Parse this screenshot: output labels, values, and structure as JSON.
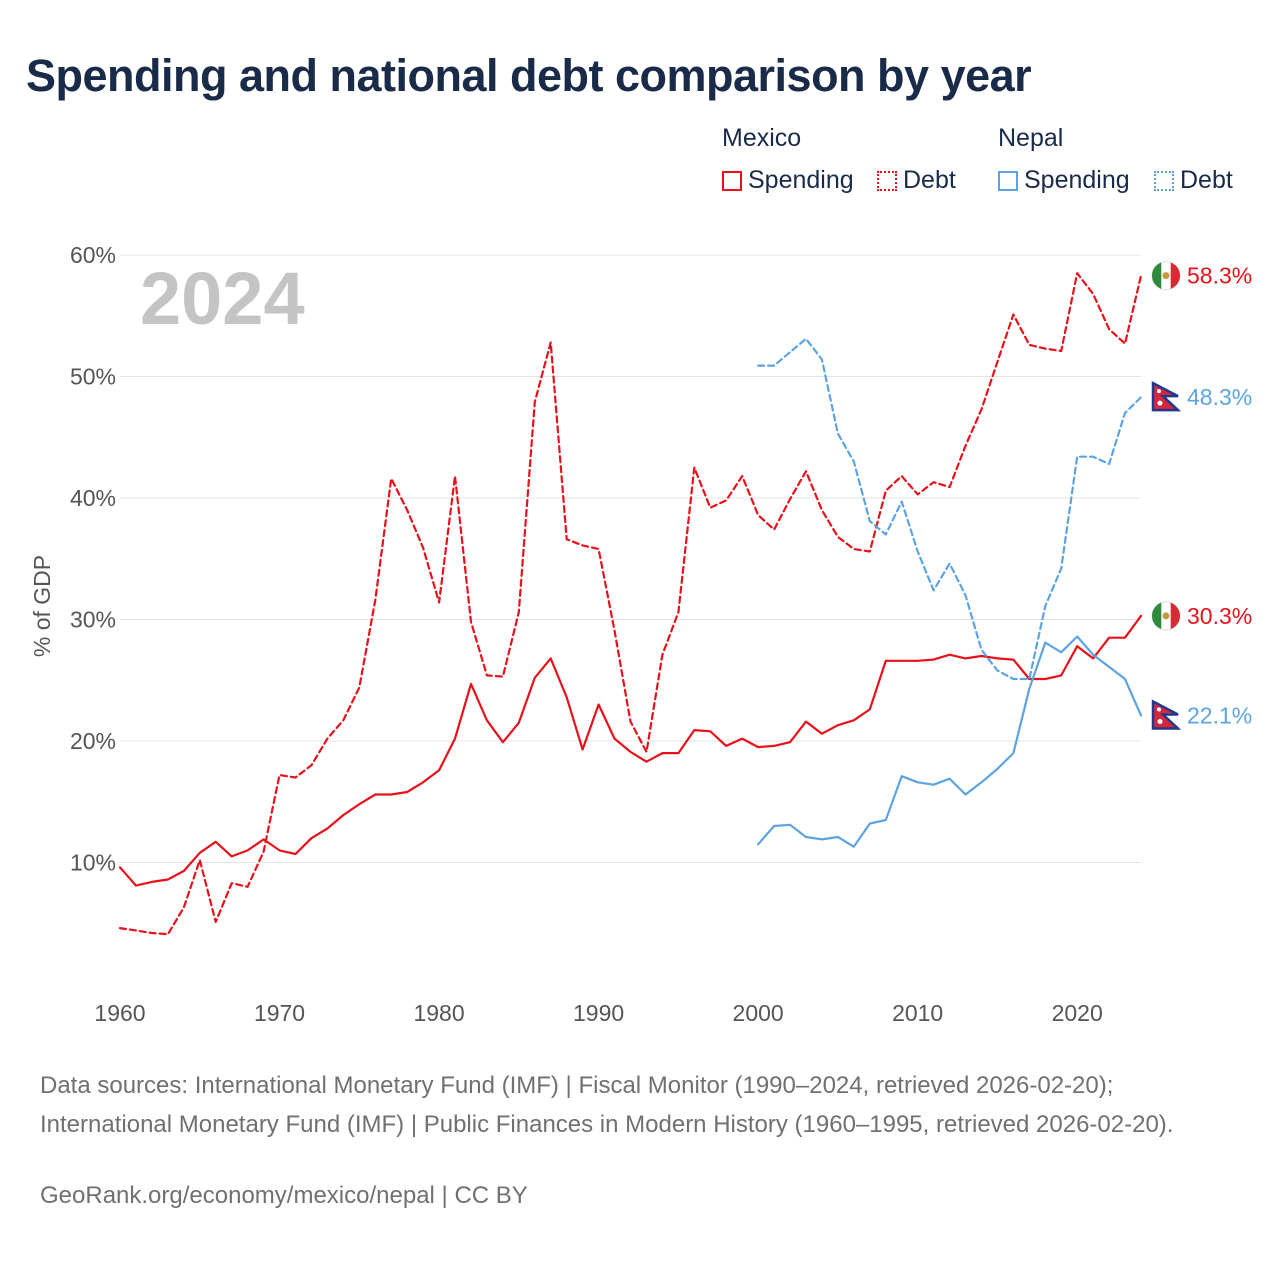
{
  "title": "Spending and national debt comparison by year",
  "legend": {
    "groups": [
      {
        "name": "Mexico",
        "color": "#e8111b",
        "spending_label": "Spending",
        "debt_label": "Debt"
      },
      {
        "name": "Nepal",
        "color": "#5da3e0",
        "spending_label": "Spending",
        "debt_label": "Debt"
      }
    ]
  },
  "watermark_year": "2024",
  "sources_text": "Data sources: International Monetary Fund (IMF) | Fiscal Monitor (1990–2024, retrieved 2026-02-20); International Monetary Fund (IMF) | Public Finances in Modern History (1960–1995, retrieved 2026-02-20).",
  "credit_text": "GeoRank.org/economy/mexico/nepal | CC BY",
  "chart_data": {
    "type": "line",
    "title": "Spending and national debt comparison by year",
    "ylabel": "% of GDP",
    "xlabel": "",
    "xlim": [
      1960,
      2024
    ],
    "ylim": [
      0,
      60
    ],
    "yticks": [
      10,
      20,
      30,
      40,
      50,
      60
    ],
    "ytick_labels": [
      "10%",
      "20%",
      "30%",
      "40%",
      "50%",
      "60%"
    ],
    "xticks": [
      1960,
      1970,
      1980,
      1990,
      2000,
      2010,
      2020
    ],
    "xtick_labels": [
      "1960",
      "1970",
      "1980",
      "1990",
      "2000",
      "2010",
      "2020"
    ],
    "grid": true,
    "legend_position": "top-right",
    "series": [
      {
        "name": "Mexico Spending",
        "country": "Mexico",
        "metric": "Spending",
        "color": "#e8111b",
        "dashed": false,
        "end_label": "30.3%",
        "x": [
          1960,
          1961,
          1962,
          1963,
          1964,
          1965,
          1966,
          1967,
          1968,
          1969,
          1970,
          1971,
          1972,
          1973,
          1974,
          1975,
          1976,
          1977,
          1978,
          1979,
          1980,
          1981,
          1982,
          1983,
          1984,
          1985,
          1986,
          1987,
          1988,
          1989,
          1990,
          1991,
          1992,
          1993,
          1994,
          1995,
          1996,
          1997,
          1998,
          1999,
          2000,
          2001,
          2002,
          2003,
          2004,
          2005,
          2006,
          2007,
          2008,
          2009,
          2010,
          2011,
          2012,
          2013,
          2014,
          2015,
          2016,
          2017,
          2018,
          2019,
          2020,
          2021,
          2022,
          2023,
          2024
        ],
        "values": [
          9.6,
          8.1,
          8.4,
          8.6,
          9.3,
          10.8,
          11.7,
          10.5,
          11.0,
          11.9,
          11.0,
          10.7,
          12.0,
          12.8,
          13.9,
          14.8,
          15.6,
          15.6,
          15.8,
          16.6,
          17.6,
          20.2,
          24.7,
          21.7,
          19.9,
          21.5,
          25.2,
          26.8,
          23.6,
          19.3,
          23.0,
          20.2,
          19.1,
          18.3,
          19.0,
          19.0,
          20.9,
          20.8,
          19.6,
          20.2,
          19.5,
          19.6,
          19.9,
          21.6,
          20.6,
          21.3,
          21.7,
          22.6,
          26.6,
          26.6,
          26.6,
          26.7,
          27.1,
          26.8,
          27.0,
          26.8,
          26.7,
          25.1,
          25.1,
          25.4,
          27.8,
          26.8,
          28.5,
          28.5,
          30.3
        ]
      },
      {
        "name": "Mexico Debt",
        "country": "Mexico",
        "metric": "Debt",
        "color": "#e8111b",
        "dashed": true,
        "end_label": "58.3%",
        "x": [
          1960,
          1961,
          1962,
          1963,
          1964,
          1965,
          1966,
          1967,
          1968,
          1969,
          1970,
          1971,
          1972,
          1973,
          1974,
          1975,
          1976,
          1977,
          1978,
          1979,
          1980,
          1981,
          1982,
          1983,
          1984,
          1985,
          1986,
          1987,
          1988,
          1989,
          1990,
          1991,
          1992,
          1993,
          1994,
          1995,
          1996,
          1997,
          1998,
          1999,
          2000,
          2001,
          2002,
          2003,
          2004,
          2005,
          2006,
          2007,
          2008,
          2009,
          2010,
          2011,
          2012,
          2013,
          2014,
          2015,
          2016,
          2017,
          2018,
          2019,
          2020,
          2021,
          2022,
          2023,
          2024
        ],
        "values": [
          4.6,
          4.4,
          4.2,
          4.1,
          6.3,
          10.2,
          5.1,
          8.3,
          8.0,
          10.9,
          17.2,
          17.0,
          18.0,
          20.2,
          21.7,
          24.4,
          31.6,
          41.6,
          39.0,
          35.9,
          31.4,
          41.8,
          29.8,
          25.4,
          25.3,
          30.6,
          47.9,
          52.8,
          36.6,
          36.1,
          35.8,
          29.1,
          21.6,
          19.1,
          27.1,
          30.6,
          42.5,
          39.2,
          39.8,
          41.8,
          38.6,
          37.4,
          39.9,
          42.2,
          39.0,
          36.8,
          35.8,
          35.6,
          40.6,
          41.8,
          40.3,
          41.3,
          40.9,
          44.3,
          47.3,
          51.2,
          55.1,
          52.6,
          52.3,
          52.1,
          58.5,
          56.8,
          53.9,
          52.7,
          58.3
        ]
      },
      {
        "name": "Nepal Spending",
        "country": "Nepal",
        "metric": "Spending",
        "color": "#5da3e0",
        "dashed": false,
        "end_label": "22.1%",
        "x": [
          2000,
          2001,
          2002,
          2003,
          2004,
          2005,
          2006,
          2007,
          2008,
          2009,
          2010,
          2011,
          2012,
          2013,
          2014,
          2015,
          2016,
          2017,
          2018,
          2019,
          2020,
          2021,
          2022,
          2023,
          2024
        ],
        "values": [
          11.5,
          13.0,
          13.1,
          12.1,
          11.9,
          12.1,
          11.3,
          13.2,
          13.5,
          17.1,
          16.6,
          16.4,
          16.9,
          15.6,
          16.6,
          17.7,
          19.0,
          24.3,
          28.1,
          27.3,
          28.6,
          27.1,
          26.1,
          25.1,
          22.1
        ]
      },
      {
        "name": "Nepal Debt",
        "country": "Nepal",
        "metric": "Debt",
        "color": "#5da3e0",
        "dashed": true,
        "end_label": "48.3%",
        "x": [
          2000,
          2001,
          2002,
          2003,
          2004,
          2005,
          2006,
          2007,
          2008,
          2009,
          2010,
          2011,
          2012,
          2013,
          2014,
          2015,
          2016,
          2017,
          2018,
          2019,
          2020,
          2021,
          2022,
          2023,
          2024
        ],
        "values": [
          50.9,
          50.9,
          52.0,
          53.1,
          51.4,
          45.3,
          43.0,
          38.1,
          37.0,
          39.7,
          35.6,
          32.4,
          34.6,
          32.0,
          27.5,
          25.8,
          25.1,
          25.1,
          31.1,
          34.2,
          43.4,
          43.4,
          42.8,
          47.0,
          48.3
        ]
      }
    ]
  }
}
